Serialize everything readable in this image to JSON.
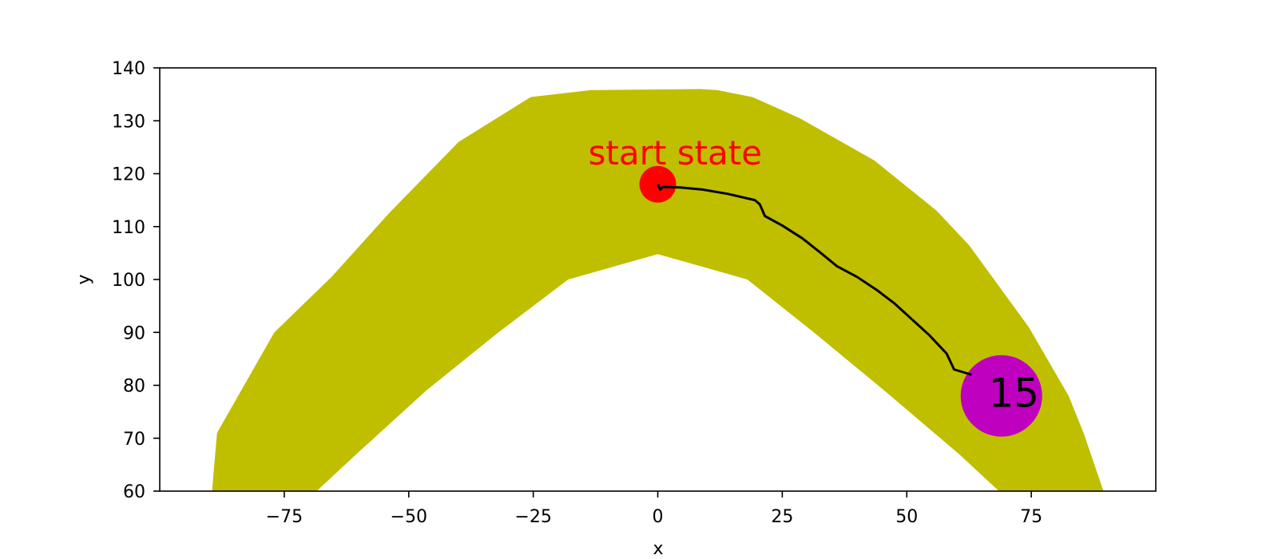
{
  "chart_data": {
    "type": "scatter",
    "title": "",
    "xlabel": "x",
    "ylabel": "y",
    "xlim": [
      -100,
      100
    ],
    "ylim": [
      60,
      140
    ],
    "xticks": [
      -75,
      -50,
      -25,
      0,
      25,
      50,
      75
    ],
    "xtick_labels": [
      "−75",
      "−50",
      "−25",
      "0",
      "25",
      "50",
      "75"
    ],
    "yticks": [
      60,
      70,
      80,
      90,
      100,
      110,
      120,
      130,
      140
    ],
    "ytick_labels": [
      "60",
      "70",
      "80",
      "90",
      "100",
      "110",
      "120",
      "130",
      "140"
    ],
    "grid": false,
    "band": {
      "color": "#bfbf00",
      "outer": [
        [
          -89.5,
          60
        ],
        [
          -88.5,
          71
        ],
        [
          -77,
          90
        ],
        [
          -65.5,
          100.5
        ],
        [
          -54,
          112.5
        ],
        [
          -40,
          126
        ],
        [
          -25.5,
          134.5
        ],
        [
          -13.5,
          135.8
        ],
        [
          8.5,
          136
        ],
        [
          12,
          135.8
        ],
        [
          19,
          134.5
        ],
        [
          28.5,
          130.5
        ],
        [
          43.5,
          122.5
        ],
        [
          56,
          113
        ],
        [
          62.5,
          106.5
        ],
        [
          74.5,
          91
        ],
        [
          82.5,
          78
        ],
        [
          85.5,
          71
        ],
        [
          89.5,
          60
        ]
      ],
      "inner": [
        [
          68.5,
          60
        ],
        [
          60.5,
          67
        ],
        [
          45.5,
          79
        ],
        [
          32,
          89.5
        ],
        [
          18,
          100
        ],
        [
          0,
          104.8
        ],
        [
          -18,
          100
        ],
        [
          -32,
          90
        ],
        [
          -46.5,
          79
        ],
        [
          -60.5,
          67
        ],
        [
          -68.5,
          60
        ]
      ]
    },
    "trajectory": {
      "color": "#000000",
      "points": [
        [
          0,
          118
        ],
        [
          0.5,
          117
        ],
        [
          1,
          117.5
        ],
        [
          4.5,
          117.4
        ],
        [
          9,
          117
        ],
        [
          14,
          116.2
        ],
        [
          19.5,
          115
        ],
        [
          20.5,
          114.2
        ],
        [
          21.5,
          112
        ],
        [
          25,
          110.2
        ],
        [
          29,
          107.8
        ],
        [
          32.5,
          105.2
        ],
        [
          36,
          102.5
        ],
        [
          40,
          100.5
        ],
        [
          44,
          98
        ],
        [
          47.5,
          95.5
        ],
        [
          51,
          92.5
        ],
        [
          54.5,
          89.5
        ],
        [
          58,
          86
        ],
        [
          59.5,
          83
        ],
        [
          63,
          82
        ]
      ]
    },
    "start": {
      "x": 0,
      "y": 118,
      "color": "#ff0000",
      "label": "start state",
      "label_x": 3.5,
      "label_y": 123.5
    },
    "goal": {
      "x": 69,
      "y": 78,
      "color": "#bf00bf",
      "label": "15",
      "label_x": 71.5,
      "label_y": 78
    }
  }
}
